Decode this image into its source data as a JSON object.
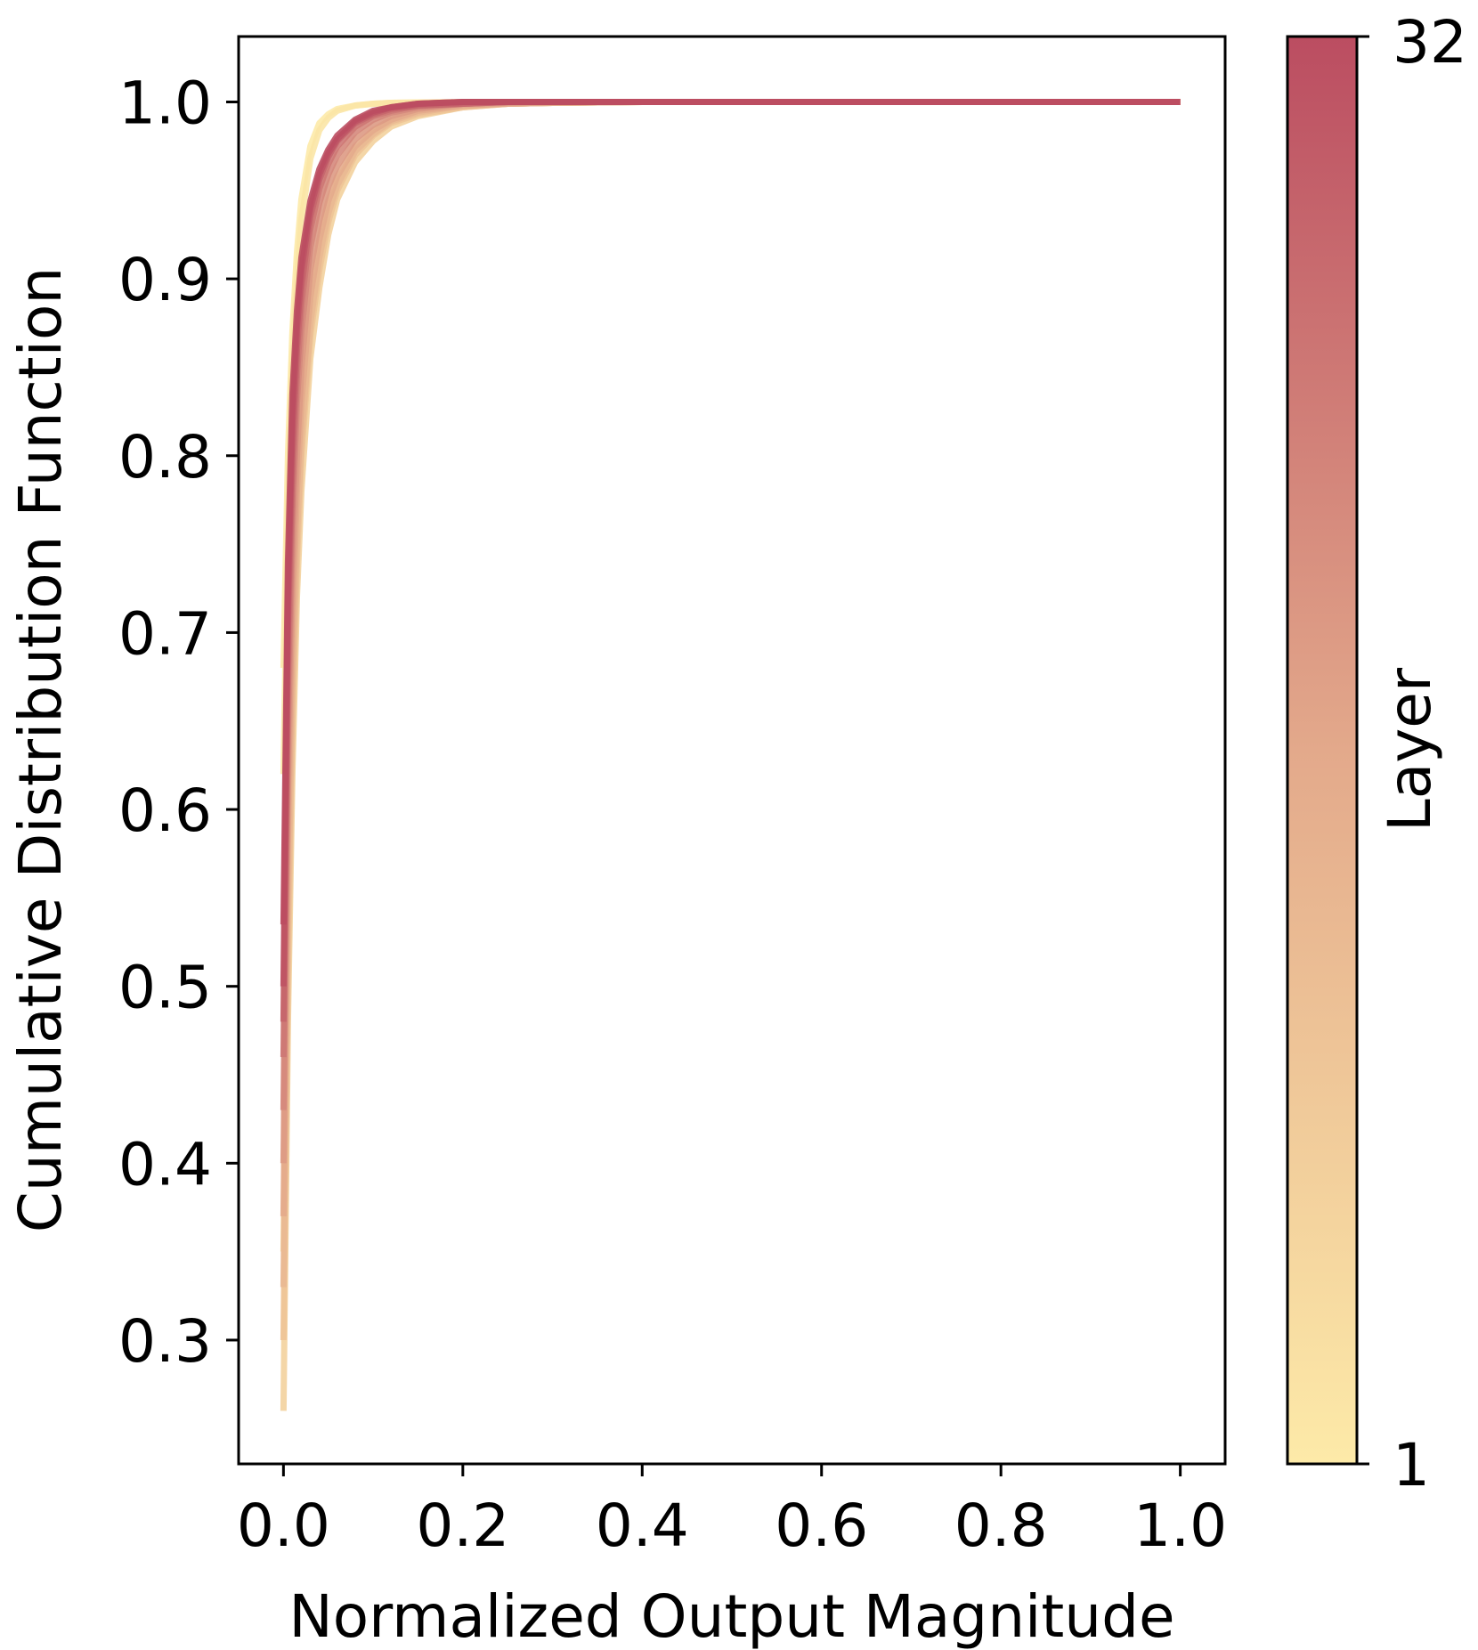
{
  "chart_data": {
    "type": "line",
    "title": "",
    "xlabel": "Normalized Output Magnitude",
    "ylabel": "Cumulative Distribution Function",
    "xlim": [
      -0.05,
      1.05
    ],
    "ylim": [
      0.23,
      1.037
    ],
    "xticks": [
      0.0,
      0.2,
      0.4,
      0.6,
      0.8,
      1.0
    ],
    "xtick_labels": [
      "0.0",
      "0.2",
      "0.4",
      "0.6",
      "0.8",
      "1.0"
    ],
    "yticks": [
      0.3,
      0.4,
      0.5,
      0.6,
      0.7,
      0.8,
      0.9,
      1.0
    ],
    "ytick_labels": [
      "0.3",
      "0.4",
      "0.5",
      "0.6",
      "0.7",
      "0.8",
      "0.9",
      "1.0"
    ],
    "grid": false,
    "legend": "none",
    "colorbar": {
      "label": "Layer",
      "min": 1,
      "max": 32,
      "min_label": "1",
      "max_label": "32",
      "color_low": "#fdeaa8",
      "color_mid": "#e3a98b",
      "color_high": "#bb4d61"
    },
    "series_note_colors": [
      "#fdeaa8",
      "#bb4d61"
    ],
    "x": [
      0,
      0.005,
      0.01,
      0.015,
      0.02,
      0.03,
      0.04,
      0.05,
      0.06,
      0.08,
      0.1,
      0.12,
      0.15,
      0.2,
      0.25,
      0.3,
      0.4,
      0.5,
      0.6,
      0.7,
      0.8,
      0.9,
      1.0
    ],
    "series": [
      {
        "layer": 1,
        "values": [
          0.68,
          0.8,
          0.87,
          0.915,
          0.945,
          0.975,
          0.988,
          0.993,
          0.996,
          0.998,
          0.999,
          0.9995,
          0.9997,
          0.9999,
          1.0,
          1.0,
          1.0,
          1.0,
          1.0,
          1.0,
          1.0,
          1.0,
          1.0
        ]
      },
      {
        "layer": 2,
        "values": [
          0.62,
          0.77,
          0.85,
          0.9,
          0.933,
          0.968,
          0.984,
          0.991,
          0.995,
          0.998,
          0.999,
          0.9995,
          0.9997,
          0.9999,
          1.0,
          1.0,
          1.0,
          1.0,
          1.0,
          1.0,
          1.0,
          1.0,
          1.0
        ]
      },
      {
        "layer": 4,
        "values": [
          0.35,
          0.56,
          0.69,
          0.77,
          0.82,
          0.88,
          0.915,
          0.94,
          0.955,
          0.973,
          0.983,
          0.989,
          0.994,
          0.998,
          0.999,
          0.9995,
          1.0,
          1.0,
          1.0,
          1.0,
          1.0,
          1.0,
          1.0
        ]
      },
      {
        "layer": 7,
        "values": [
          0.26,
          0.48,
          0.62,
          0.72,
          0.78,
          0.855,
          0.895,
          0.925,
          0.945,
          0.966,
          0.978,
          0.986,
          0.992,
          0.997,
          0.999,
          0.9995,
          1.0,
          1.0,
          1.0,
          1.0,
          1.0,
          1.0,
          1.0
        ]
      },
      {
        "layer": 10,
        "values": [
          0.3,
          0.51,
          0.65,
          0.74,
          0.8,
          0.868,
          0.905,
          0.932,
          0.95,
          0.97,
          0.981,
          0.988,
          0.993,
          0.997,
          0.999,
          0.9995,
          1.0,
          1.0,
          1.0,
          1.0,
          1.0,
          1.0,
          1.0
        ]
      },
      {
        "layer": 13,
        "values": [
          0.33,
          0.54,
          0.67,
          0.755,
          0.81,
          0.875,
          0.912,
          0.937,
          0.953,
          0.972,
          0.982,
          0.989,
          0.994,
          0.998,
          0.999,
          0.9995,
          1.0,
          1.0,
          1.0,
          1.0,
          1.0,
          1.0,
          1.0
        ]
      },
      {
        "layer": 16,
        "values": [
          0.37,
          0.58,
          0.7,
          0.78,
          0.83,
          0.89,
          0.922,
          0.944,
          0.958,
          0.975,
          0.984,
          0.99,
          0.995,
          0.998,
          0.999,
          0.9995,
          1.0,
          1.0,
          1.0,
          1.0,
          1.0,
          1.0,
          1.0
        ]
      },
      {
        "layer": 19,
        "values": [
          0.4,
          0.61,
          0.73,
          0.8,
          0.85,
          0.905,
          0.933,
          0.952,
          0.964,
          0.979,
          0.987,
          0.992,
          0.996,
          0.999,
          0.9995,
          1.0,
          1.0,
          1.0,
          1.0,
          1.0,
          1.0,
          1.0,
          1.0
        ]
      },
      {
        "layer": 22,
        "values": [
          0.43,
          0.64,
          0.76,
          0.83,
          0.87,
          0.918,
          0.943,
          0.959,
          0.97,
          0.983,
          0.99,
          0.994,
          0.997,
          0.999,
          1.0,
          1.0,
          1.0,
          1.0,
          1.0,
          1.0,
          1.0,
          1.0,
          1.0
        ]
      },
      {
        "layer": 25,
        "values": [
          0.46,
          0.67,
          0.78,
          0.845,
          0.885,
          0.928,
          0.951,
          0.965,
          0.975,
          0.986,
          0.992,
          0.995,
          0.998,
          0.999,
          1.0,
          1.0,
          1.0,
          1.0,
          1.0,
          1.0,
          1.0,
          1.0,
          1.0
        ]
      },
      {
        "layer": 28,
        "values": [
          0.48,
          0.7,
          0.8,
          0.86,
          0.895,
          0.935,
          0.956,
          0.969,
          0.978,
          0.988,
          0.993,
          0.996,
          0.998,
          0.999,
          1.0,
          1.0,
          1.0,
          1.0,
          1.0,
          1.0,
          1.0,
          1.0,
          1.0
        ]
      },
      {
        "layer": 31,
        "values": [
          0.5,
          0.72,
          0.82,
          0.872,
          0.905,
          0.94,
          0.959,
          0.971,
          0.979,
          0.989,
          0.994,
          0.997,
          0.999,
          1.0,
          1.0,
          1.0,
          1.0,
          1.0,
          1.0,
          1.0,
          1.0,
          1.0,
          1.0
        ]
      },
      {
        "layer": 32,
        "values": [
          0.535,
          0.74,
          0.835,
          0.882,
          0.912,
          0.944,
          0.962,
          0.973,
          0.981,
          0.99,
          0.995,
          0.997,
          0.999,
          1.0,
          1.0,
          1.0,
          1.0,
          1.0,
          1.0,
          1.0,
          1.0,
          1.0,
          1.0
        ]
      }
    ]
  }
}
